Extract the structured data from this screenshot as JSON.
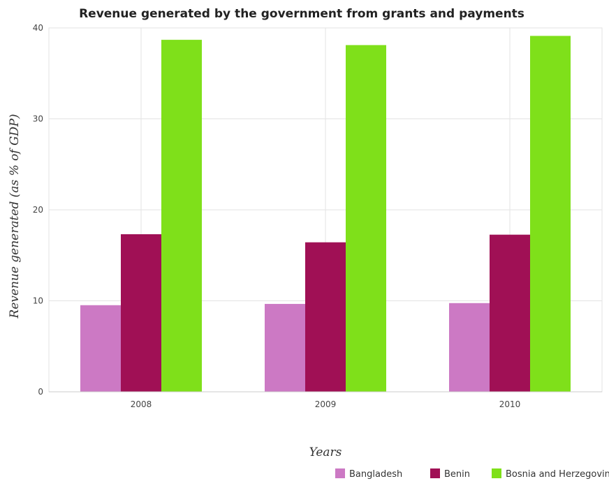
{
  "chart_data": {
    "type": "bar",
    "title": "Revenue generated by the government from grants and payments",
    "xlabel": "Years",
    "ylabel": "Revenue generated (as % of GDP)",
    "categories": [
      "2008",
      "2009",
      "2010"
    ],
    "ylim": [
      0,
      40
    ],
    "yticks": [
      0,
      10,
      20,
      30,
      40
    ],
    "grid": true,
    "legend_position": "bottom-right",
    "series": [
      {
        "name": "Bangladesh",
        "color": "#cc79c4",
        "values": [
          9.52,
          9.66,
          9.75
        ]
      },
      {
        "name": "Benin",
        "color": "#a01055",
        "values": [
          17.32,
          16.43,
          17.27
        ]
      },
      {
        "name": "Bosnia and Herzegovina",
        "color": "#7fe01a",
        "values": [
          38.69,
          38.11,
          39.12
        ]
      }
    ]
  }
}
